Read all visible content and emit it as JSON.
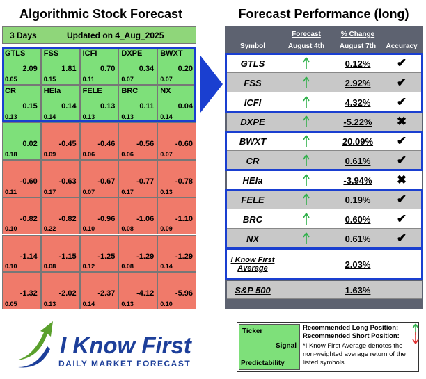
{
  "left": {
    "title": "Algorithmic Stock Forecast",
    "header": {
      "period": "3 Days",
      "updated": "Updated on 4_Aug_2025"
    },
    "cells": [
      {
        "symbol": "GTLS",
        "signal": "2.09",
        "predictability": "0.05"
      },
      {
        "symbol": "FSS",
        "signal": "1.81",
        "predictability": "0.15"
      },
      {
        "symbol": "ICFI",
        "signal": "0.70",
        "predictability": "0.11"
      },
      {
        "symbol": "DXPE",
        "signal": "0.34",
        "predictability": "0.07"
      },
      {
        "symbol": "BWXT",
        "signal": "0.20",
        "predictability": "0.07"
      },
      {
        "symbol": "CR",
        "signal": "0.15",
        "predictability": "0.13"
      },
      {
        "symbol": "HEIa",
        "signal": "0.14",
        "predictability": "0.14"
      },
      {
        "symbol": "FELE",
        "signal": "0.13",
        "predictability": "0.13"
      },
      {
        "symbol": "BRC",
        "signal": "0.11",
        "predictability": "0.13"
      },
      {
        "symbol": "NX",
        "signal": "0.04",
        "predictability": "0.14"
      },
      {
        "signal": "0.02",
        "predictability": "0.18"
      },
      {
        "signal": "-0.45",
        "predictability": "0.09"
      },
      {
        "signal": "-0.46",
        "predictability": "0.06"
      },
      {
        "signal": "-0.56",
        "predictability": "0.06"
      },
      {
        "signal": "-0.60",
        "predictability": "0.07"
      },
      {
        "signal": "-0.60",
        "predictability": "0.11"
      },
      {
        "signal": "-0.63",
        "predictability": "0.17"
      },
      {
        "signal": "-0.67",
        "predictability": "0.07"
      },
      {
        "signal": "-0.77",
        "predictability": "0.17"
      },
      {
        "signal": "-0.78",
        "predictability": "0.13"
      },
      {
        "signal": "-0.82",
        "predictability": "0.10"
      },
      {
        "signal": "-0.82",
        "predictability": "0.22"
      },
      {
        "signal": "-0.96",
        "predictability": "0.10"
      },
      {
        "signal": "-1.06",
        "predictability": "0.08"
      },
      {
        "signal": "-1.10",
        "predictability": "0.09"
      },
      {
        "signal": "-1.14",
        "predictability": "0.10"
      },
      {
        "signal": "-1.15",
        "predictability": "0.08"
      },
      {
        "signal": "-1.25",
        "predictability": "0.12"
      },
      {
        "signal": "-1.29",
        "predictability": "0.08"
      },
      {
        "signal": "-1.29",
        "predictability": "0.14"
      },
      {
        "signal": "-1.32",
        "predictability": "0.05"
      },
      {
        "signal": "-2.02",
        "predictability": "0.13"
      },
      {
        "signal": "-2.37",
        "predictability": "0.14"
      },
      {
        "signal": "-4.12",
        "predictability": "0.13"
      },
      {
        "signal": "-5.96",
        "predictability": "0.10"
      }
    ]
  },
  "right": {
    "title": "Forecast Performance (long)",
    "columns": {
      "symbol": "Symbol",
      "forecast": "Forecast",
      "forecast_date": "August 4th",
      "change": "% Change",
      "change_date": "August 7th",
      "accuracy": "Accuracy"
    },
    "rows": [
      {
        "symbol": "GTLS",
        "change": "0.12%",
        "accuracy": "✔"
      },
      {
        "symbol": "FSS",
        "change": "2.92%",
        "accuracy": "✔"
      },
      {
        "symbol": "ICFI",
        "change": "4.32%",
        "accuracy": "✔"
      },
      {
        "symbol": "DXPE",
        "change": "-5.22%",
        "accuracy": "✖"
      },
      {
        "symbol": "BWXT",
        "change": "20.09%",
        "accuracy": "✔"
      },
      {
        "symbol": "CR",
        "change": "0.61%",
        "accuracy": "✔"
      },
      {
        "symbol": "HEIa",
        "change": "-3.94%",
        "accuracy": "✖"
      },
      {
        "symbol": "FELE",
        "change": "0.19%",
        "accuracy": "✔"
      },
      {
        "symbol": "BRC",
        "change": "0.60%",
        "accuracy": "✔"
      },
      {
        "symbol": "NX",
        "change": "0.61%",
        "accuracy": "✔"
      }
    ],
    "average": {
      "label": "I Know First Average",
      "change": "2.03%"
    },
    "benchmark": {
      "label": "S&P 500",
      "change": "1.63%"
    }
  },
  "legend": {
    "ticker": "Ticker",
    "signal": "Signal",
    "predictability": "Predictability",
    "long": "Recommended Long Position:",
    "short": "Recommended Short Position:",
    "note": "*I Know First Average denotes the non-weighted average return of the listed symbols"
  },
  "logo": {
    "brand": "I Know First",
    "tagline": "DAILY MARKET FORECAST"
  }
}
